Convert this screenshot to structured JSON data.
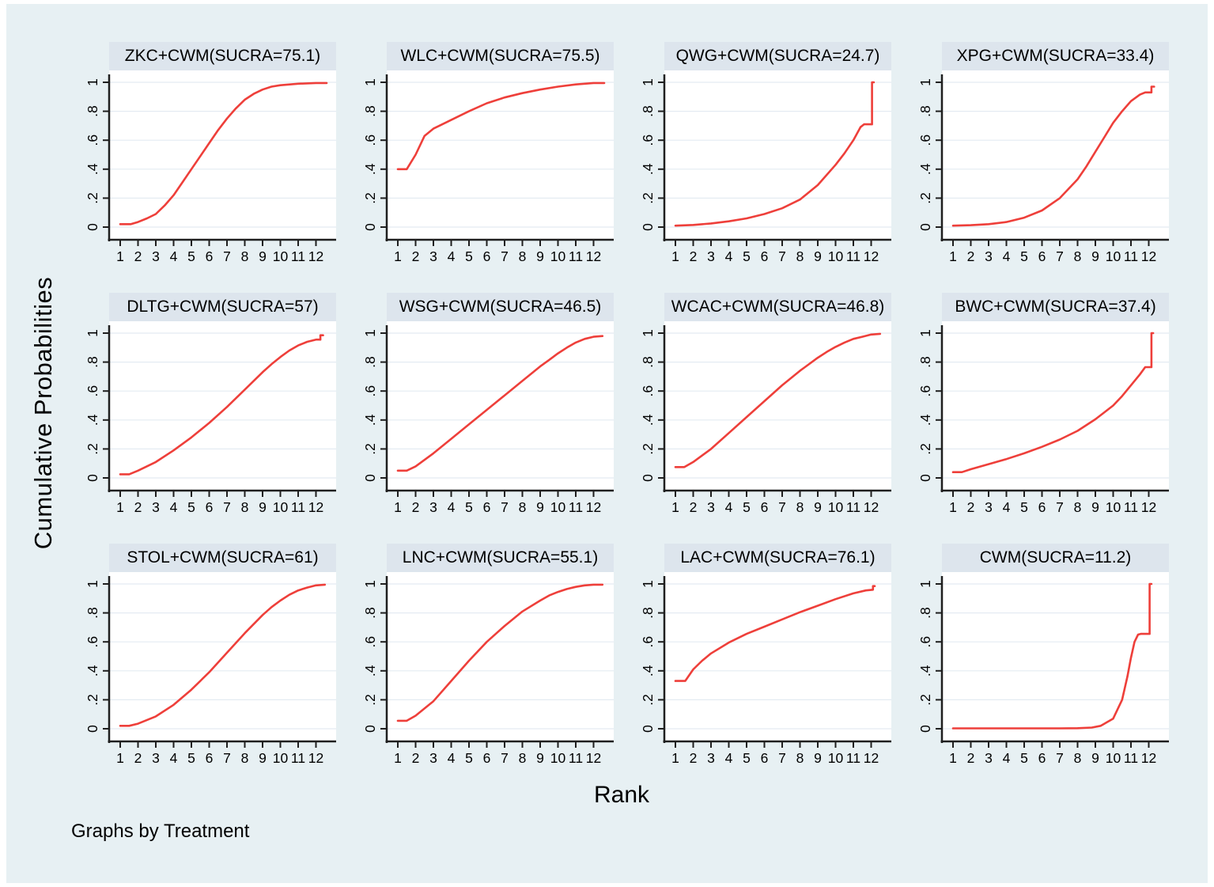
{
  "figure": {
    "ylabel": "Cumulative Probabilities",
    "xlabel": "Rank",
    "footnote": "Graphs by Treatment",
    "colors": {
      "background": "#e7f0f3",
      "title_strip": "#dde5ed",
      "plot_bg": "#ffffff",
      "grid": "#e4ebf2",
      "axis": "#1f1f1f",
      "line": "#ee3f3a",
      "text": "#000000"
    },
    "y_ticks": [
      "0",
      ".2",
      ".4",
      ".6",
      ".8",
      "1"
    ],
    "y_tick_values": [
      0,
      0.2,
      0.4,
      0.6,
      0.8,
      1
    ],
    "x_ticks": [
      "1",
      "2",
      "3",
      "4",
      "5",
      "6",
      "7",
      "8",
      "9",
      "10",
      "11",
      "12"
    ],
    "x_tick_values": [
      1,
      2,
      3,
      4,
      5,
      6,
      7,
      8,
      9,
      10,
      11,
      12
    ]
  },
  "chart_data": [
    {
      "type": "line",
      "title": "ZKC+CWM(SUCRA=75.1)",
      "treatment": "ZKC+CWM",
      "sucra": 75.1,
      "xlabel": "Rank",
      "ylim": [
        0,
        1
      ],
      "xlim": [
        1,
        12.6
      ],
      "grid": true,
      "categories": [
        1,
        2,
        3,
        4,
        5,
        6,
        7,
        8,
        9,
        10,
        11,
        12
      ],
      "values": [
        0.02,
        0.035,
        0.09,
        0.22,
        0.4,
        0.58,
        0.75,
        0.88,
        0.95,
        0.98,
        0.99,
        1.0
      ],
      "points": [
        [
          1,
          0.02
        ],
        [
          1.6,
          0.02
        ],
        [
          2,
          0.035
        ],
        [
          2.5,
          0.06
        ],
        [
          3,
          0.09
        ],
        [
          3.5,
          0.15
        ],
        [
          4,
          0.22
        ],
        [
          4.5,
          0.31
        ],
        [
          5,
          0.4
        ],
        [
          5.5,
          0.49
        ],
        [
          6,
          0.58
        ],
        [
          6.5,
          0.67
        ],
        [
          7,
          0.75
        ],
        [
          7.5,
          0.82
        ],
        [
          8,
          0.88
        ],
        [
          8.5,
          0.92
        ],
        [
          9,
          0.95
        ],
        [
          9.5,
          0.97
        ],
        [
          10,
          0.98
        ],
        [
          11,
          0.99
        ],
        [
          12,
          0.995
        ],
        [
          12.6,
          0.995
        ]
      ]
    },
    {
      "type": "line",
      "title": "WLC+CWM(SUCRA=75.5)",
      "treatment": "WLC+CWM",
      "sucra": 75.5,
      "xlabel": "Rank",
      "ylim": [
        0,
        1
      ],
      "xlim": [
        1,
        12.6
      ],
      "grid": true,
      "categories": [
        1,
        2,
        3,
        4,
        5,
        6,
        7,
        8,
        9,
        10,
        11,
        12
      ],
      "values": [
        0.4,
        0.5,
        0.68,
        0.74,
        0.8,
        0.855,
        0.895,
        0.925,
        0.95,
        0.97,
        0.985,
        1.0
      ],
      "points": [
        [
          1,
          0.4
        ],
        [
          1.5,
          0.4
        ],
        [
          2,
          0.5
        ],
        [
          2.5,
          0.63
        ],
        [
          3,
          0.68
        ],
        [
          3.5,
          0.71
        ],
        [
          4,
          0.74
        ],
        [
          5,
          0.8
        ],
        [
          6,
          0.855
        ],
        [
          7,
          0.895
        ],
        [
          8,
          0.925
        ],
        [
          9,
          0.95
        ],
        [
          10,
          0.97
        ],
        [
          11,
          0.985
        ],
        [
          12,
          0.995
        ],
        [
          12.6,
          0.995
        ]
      ]
    },
    {
      "type": "line",
      "title": "QWG+CWM(SUCRA=24.7)",
      "treatment": "QWG+CWM",
      "sucra": 24.7,
      "xlabel": "Rank",
      "ylim": [
        0,
        1
      ],
      "xlim": [
        1,
        12.6
      ],
      "grid": true,
      "categories": [
        1,
        2,
        3,
        4,
        5,
        6,
        7,
        8,
        9,
        10,
        11,
        12
      ],
      "values": [
        0.01,
        0.015,
        0.025,
        0.04,
        0.06,
        0.09,
        0.13,
        0.19,
        0.29,
        0.43,
        0.6,
        0.71
      ],
      "points": [
        [
          1,
          0.01
        ],
        [
          2,
          0.015
        ],
        [
          3,
          0.025
        ],
        [
          4,
          0.04
        ],
        [
          5,
          0.06
        ],
        [
          6,
          0.09
        ],
        [
          7,
          0.13
        ],
        [
          8,
          0.19
        ],
        [
          9,
          0.29
        ],
        [
          10,
          0.43
        ],
        [
          10.5,
          0.51
        ],
        [
          11,
          0.6
        ],
        [
          11.4,
          0.69
        ],
        [
          11.6,
          0.71
        ],
        [
          12.05,
          0.71
        ],
        [
          12.05,
          1.0
        ],
        [
          12.15,
          1.0
        ]
      ]
    },
    {
      "type": "line",
      "title": "XPG+CWM(SUCRA=33.4)",
      "treatment": "XPG+CWM",
      "sucra": 33.4,
      "xlabel": "Rank",
      "ylim": [
        0,
        1
      ],
      "xlim": [
        1,
        12.6
      ],
      "grid": true,
      "categories": [
        1,
        2,
        3,
        4,
        5,
        6,
        7,
        8,
        9,
        10,
        11,
        12
      ],
      "values": [
        0.01,
        0.013,
        0.02,
        0.035,
        0.065,
        0.115,
        0.2,
        0.33,
        0.52,
        0.72,
        0.87,
        0.93
      ],
      "points": [
        [
          1,
          0.01
        ],
        [
          2,
          0.013
        ],
        [
          3,
          0.02
        ],
        [
          4,
          0.035
        ],
        [
          5,
          0.065
        ],
        [
          6,
          0.115
        ],
        [
          7,
          0.2
        ],
        [
          8,
          0.33
        ],
        [
          8.5,
          0.42
        ],
        [
          9,
          0.52
        ],
        [
          9.5,
          0.62
        ],
        [
          10,
          0.72
        ],
        [
          10.5,
          0.8
        ],
        [
          11,
          0.87
        ],
        [
          11.5,
          0.915
        ],
        [
          11.8,
          0.93
        ],
        [
          12.15,
          0.93
        ],
        [
          12.15,
          0.97
        ],
        [
          12.3,
          0.97
        ]
      ]
    },
    {
      "type": "line",
      "title": "DLTG+CWM(SUCRA=57)",
      "treatment": "DLTG+CWM",
      "sucra": 57,
      "xlabel": "Rank",
      "ylim": [
        0,
        1
      ],
      "xlim": [
        1,
        12.6
      ],
      "grid": true,
      "categories": [
        1,
        2,
        3,
        4,
        5,
        6,
        7,
        8,
        9,
        10,
        11,
        12
      ],
      "values": [
        0.025,
        0.05,
        0.11,
        0.19,
        0.28,
        0.38,
        0.49,
        0.61,
        0.73,
        0.835,
        0.915,
        0.955
      ],
      "points": [
        [
          1,
          0.025
        ],
        [
          1.5,
          0.025
        ],
        [
          2,
          0.05
        ],
        [
          3,
          0.11
        ],
        [
          4,
          0.19
        ],
        [
          5,
          0.28
        ],
        [
          6,
          0.38
        ],
        [
          7,
          0.49
        ],
        [
          8,
          0.61
        ],
        [
          9,
          0.73
        ],
        [
          9.5,
          0.785
        ],
        [
          10,
          0.835
        ],
        [
          10.5,
          0.88
        ],
        [
          11,
          0.915
        ],
        [
          11.5,
          0.94
        ],
        [
          12,
          0.955
        ],
        [
          12.25,
          0.955
        ],
        [
          12.25,
          0.985
        ],
        [
          12.4,
          0.985
        ]
      ]
    },
    {
      "type": "line",
      "title": "WSG+CWM(SUCRA=46.5)",
      "treatment": "WSG+CWM",
      "sucra": 46.5,
      "xlabel": "Rank",
      "ylim": [
        0,
        1
      ],
      "xlim": [
        1,
        12.6
      ],
      "grid": true,
      "categories": [
        1,
        2,
        3,
        4,
        5,
        6,
        7,
        8,
        9,
        10,
        11,
        12
      ],
      "values": [
        0.05,
        0.08,
        0.17,
        0.27,
        0.37,
        0.47,
        0.57,
        0.67,
        0.77,
        0.86,
        0.935,
        0.975
      ],
      "points": [
        [
          1,
          0.05
        ],
        [
          1.5,
          0.05
        ],
        [
          2,
          0.08
        ],
        [
          3,
          0.17
        ],
        [
          4,
          0.27
        ],
        [
          5,
          0.37
        ],
        [
          6,
          0.47
        ],
        [
          7,
          0.57
        ],
        [
          8,
          0.67
        ],
        [
          9,
          0.77
        ],
        [
          9.5,
          0.815
        ],
        [
          10,
          0.86
        ],
        [
          10.5,
          0.9
        ],
        [
          11,
          0.935
        ],
        [
          11.5,
          0.96
        ],
        [
          12,
          0.975
        ],
        [
          12.5,
          0.98
        ]
      ]
    },
    {
      "type": "line",
      "title": "WCAC+CWM(SUCRA=46.8)",
      "treatment": "WCAC+CWM",
      "sucra": 46.8,
      "xlabel": "Rank",
      "ylim": [
        0,
        1
      ],
      "xlim": [
        1,
        12.6
      ],
      "grid": true,
      "categories": [
        1,
        2,
        3,
        4,
        5,
        6,
        7,
        8,
        9,
        10,
        11,
        12
      ],
      "values": [
        0.075,
        0.11,
        0.2,
        0.31,
        0.42,
        0.53,
        0.64,
        0.74,
        0.83,
        0.905,
        0.96,
        0.99
      ],
      "points": [
        [
          1,
          0.075
        ],
        [
          1.5,
          0.075
        ],
        [
          2,
          0.11
        ],
        [
          3,
          0.2
        ],
        [
          4,
          0.31
        ],
        [
          5,
          0.42
        ],
        [
          6,
          0.53
        ],
        [
          7,
          0.64
        ],
        [
          8,
          0.74
        ],
        [
          9,
          0.83
        ],
        [
          9.5,
          0.87
        ],
        [
          10,
          0.905
        ],
        [
          10.5,
          0.935
        ],
        [
          11,
          0.96
        ],
        [
          11.5,
          0.975
        ],
        [
          12,
          0.99
        ],
        [
          12.5,
          0.995
        ]
      ]
    },
    {
      "type": "line",
      "title": "BWC+CWM(SUCRA=37.4)",
      "treatment": "BWC+CWM",
      "sucra": 37.4,
      "xlabel": "Rank",
      "ylim": [
        0,
        1
      ],
      "xlim": [
        1,
        12.6
      ],
      "grid": true,
      "categories": [
        1,
        2,
        3,
        4,
        5,
        6,
        7,
        8,
        9,
        10,
        11,
        12
      ],
      "values": [
        0.04,
        0.06,
        0.095,
        0.13,
        0.17,
        0.215,
        0.265,
        0.325,
        0.405,
        0.5,
        0.64,
        0.765
      ],
      "points": [
        [
          1,
          0.04
        ],
        [
          1.5,
          0.04
        ],
        [
          2,
          0.06
        ],
        [
          3,
          0.095
        ],
        [
          4,
          0.13
        ],
        [
          5,
          0.17
        ],
        [
          6,
          0.215
        ],
        [
          7,
          0.265
        ],
        [
          8,
          0.325
        ],
        [
          9,
          0.405
        ],
        [
          10,
          0.5
        ],
        [
          10.5,
          0.565
        ],
        [
          11,
          0.64
        ],
        [
          11.5,
          0.715
        ],
        [
          11.8,
          0.765
        ],
        [
          12.15,
          0.765
        ],
        [
          12.15,
          1.0
        ],
        [
          12.25,
          1.0
        ]
      ]
    },
    {
      "type": "line",
      "title": "STOL+CWM(SUCRA=61)",
      "treatment": "STOL+CWM",
      "sucra": 61,
      "xlabel": "Rank",
      "ylim": [
        0,
        1
      ],
      "xlim": [
        1,
        12.6
      ],
      "grid": true,
      "categories": [
        1,
        2,
        3,
        4,
        5,
        6,
        7,
        8,
        9,
        10,
        11,
        12
      ],
      "values": [
        0.02,
        0.035,
        0.085,
        0.165,
        0.27,
        0.39,
        0.525,
        0.66,
        0.785,
        0.885,
        0.955,
        0.99
      ],
      "points": [
        [
          1,
          0.02
        ],
        [
          1.5,
          0.02
        ],
        [
          2,
          0.035
        ],
        [
          3,
          0.085
        ],
        [
          4,
          0.165
        ],
        [
          5,
          0.27
        ],
        [
          6,
          0.39
        ],
        [
          7,
          0.525
        ],
        [
          8,
          0.66
        ],
        [
          9,
          0.785
        ],
        [
          9.5,
          0.84
        ],
        [
          10,
          0.885
        ],
        [
          10.5,
          0.925
        ],
        [
          11,
          0.955
        ],
        [
          11.5,
          0.975
        ],
        [
          12,
          0.99
        ],
        [
          12.5,
          0.995
        ]
      ]
    },
    {
      "type": "line",
      "title": "LNC+CWM(SUCRA=55.1)",
      "treatment": "LNC+CWM",
      "sucra": 55.1,
      "xlabel": "Rank",
      "ylim": [
        0,
        1
      ],
      "xlim": [
        1,
        12.6
      ],
      "grid": true,
      "categories": [
        1,
        2,
        3,
        4,
        5,
        6,
        7,
        8,
        9,
        10,
        11,
        12
      ],
      "values": [
        0.055,
        0.09,
        0.19,
        0.33,
        0.47,
        0.6,
        0.71,
        0.81,
        0.885,
        0.945,
        0.98,
        0.995
      ],
      "points": [
        [
          1,
          0.055
        ],
        [
          1.5,
          0.055
        ],
        [
          2,
          0.09
        ],
        [
          3,
          0.19
        ],
        [
          4,
          0.33
        ],
        [
          5,
          0.47
        ],
        [
          6,
          0.6
        ],
        [
          7,
          0.71
        ],
        [
          8,
          0.81
        ],
        [
          9,
          0.885
        ],
        [
          9.5,
          0.92
        ],
        [
          10,
          0.945
        ],
        [
          10.5,
          0.965
        ],
        [
          11,
          0.98
        ],
        [
          11.5,
          0.99
        ],
        [
          12,
          0.995
        ],
        [
          12.5,
          0.995
        ]
      ]
    },
    {
      "type": "line",
      "title": "LAC+CWM(SUCRA=76.1)",
      "treatment": "LAC+CWM",
      "sucra": 76.1,
      "xlabel": "Rank",
      "ylim": [
        0,
        1
      ],
      "xlim": [
        1,
        12.6
      ],
      "grid": true,
      "categories": [
        1,
        2,
        3,
        4,
        5,
        6,
        7,
        8,
        9,
        10,
        11,
        12
      ],
      "values": [
        0.33,
        0.41,
        0.52,
        0.595,
        0.655,
        0.705,
        0.755,
        0.805,
        0.85,
        0.895,
        0.935,
        0.96
      ],
      "points": [
        [
          1,
          0.33
        ],
        [
          1.55,
          0.33
        ],
        [
          2,
          0.41
        ],
        [
          2.5,
          0.47
        ],
        [
          3,
          0.52
        ],
        [
          4,
          0.595
        ],
        [
          5,
          0.655
        ],
        [
          6,
          0.705
        ],
        [
          7,
          0.755
        ],
        [
          8,
          0.805
        ],
        [
          9,
          0.85
        ],
        [
          10,
          0.895
        ],
        [
          11,
          0.935
        ],
        [
          11.7,
          0.955
        ],
        [
          12.1,
          0.96
        ],
        [
          12.1,
          0.985
        ],
        [
          12.2,
          0.985
        ]
      ]
    },
    {
      "type": "line",
      "title": "CWM(SUCRA=11.2)",
      "treatment": "CWM",
      "sucra": 11.2,
      "xlabel": "Rank",
      "ylim": [
        0,
        1
      ],
      "xlim": [
        1,
        12.6
      ],
      "grid": true,
      "categories": [
        1,
        2,
        3,
        4,
        5,
        6,
        7,
        8,
        9,
        10,
        11,
        12
      ],
      "values": [
        0.003,
        0.003,
        0.003,
        0.003,
        0.003,
        0.003,
        0.003,
        0.004,
        0.02,
        0.07,
        0.49,
        0.655
      ],
      "points": [
        [
          1,
          0.003
        ],
        [
          7,
          0.003
        ],
        [
          8,
          0.004
        ],
        [
          8.8,
          0.008
        ],
        [
          9.3,
          0.02
        ],
        [
          10,
          0.07
        ],
        [
          10.5,
          0.2
        ],
        [
          10.8,
          0.36
        ],
        [
          11,
          0.49
        ],
        [
          11.2,
          0.6
        ],
        [
          11.4,
          0.65
        ],
        [
          11.55,
          0.655
        ],
        [
          12.05,
          0.655
        ],
        [
          12.05,
          1.0
        ],
        [
          12.15,
          1.0
        ]
      ]
    }
  ]
}
